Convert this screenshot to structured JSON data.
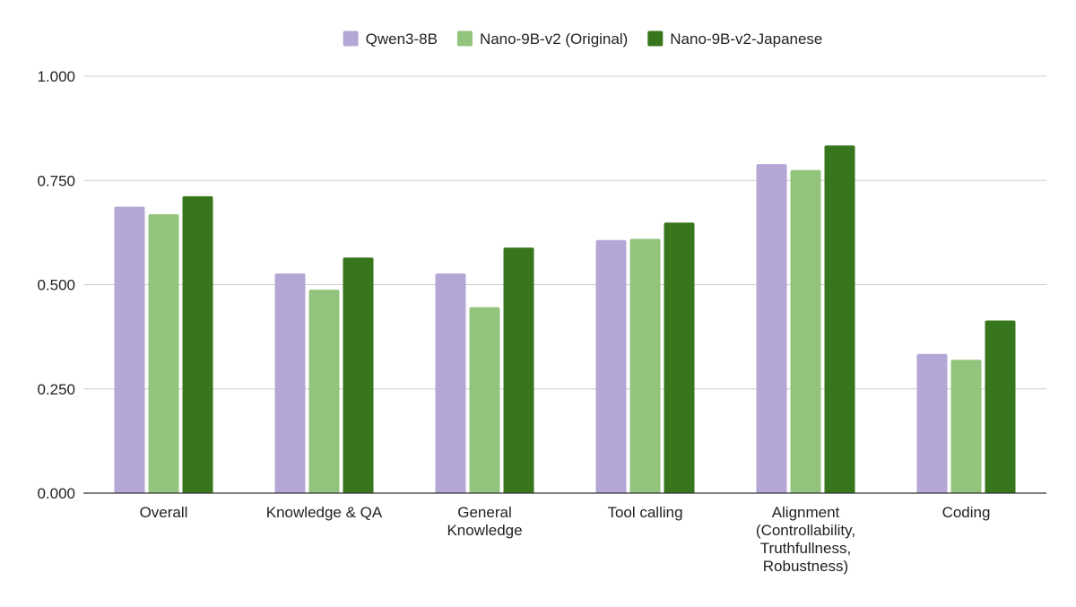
{
  "chart_data": {
    "type": "bar",
    "title": "",
    "xlabel": "",
    "ylabel": "",
    "categories": [
      [
        "Overall"
      ],
      [
        "Knowledge & QA"
      ],
      [
        "General",
        "Knowledge"
      ],
      [
        "Tool calling"
      ],
      [
        "Alignment",
        "(Controllability,",
        "Truthfullness,",
        "Robustness)"
      ],
      [
        "Coding"
      ]
    ],
    "series": [
      {
        "name": "Qwen3-8B",
        "color": "#b4a7d6",
        "values": [
          0.687,
          0.527,
          0.527,
          0.607,
          0.789,
          0.334
        ]
      },
      {
        "name": "Nano-9B-v2 (Original)",
        "color": "#93c47d",
        "values": [
          0.669,
          0.488,
          0.446,
          0.61,
          0.775,
          0.32
        ]
      },
      {
        "name": "Nano-9B-v2-Japanese",
        "color": "#38761d",
        "values": [
          0.712,
          0.565,
          0.589,
          0.649,
          0.834,
          0.414
        ]
      }
    ],
    "ylim": [
      0,
      1
    ],
    "yticks": [
      0,
      0.25,
      0.5,
      0.75,
      1
    ],
    "ytick_labels": [
      "0.000",
      "0.250",
      "0.500",
      "0.750",
      "1.000"
    ],
    "grid": true,
    "legend_position": "top-center"
  }
}
